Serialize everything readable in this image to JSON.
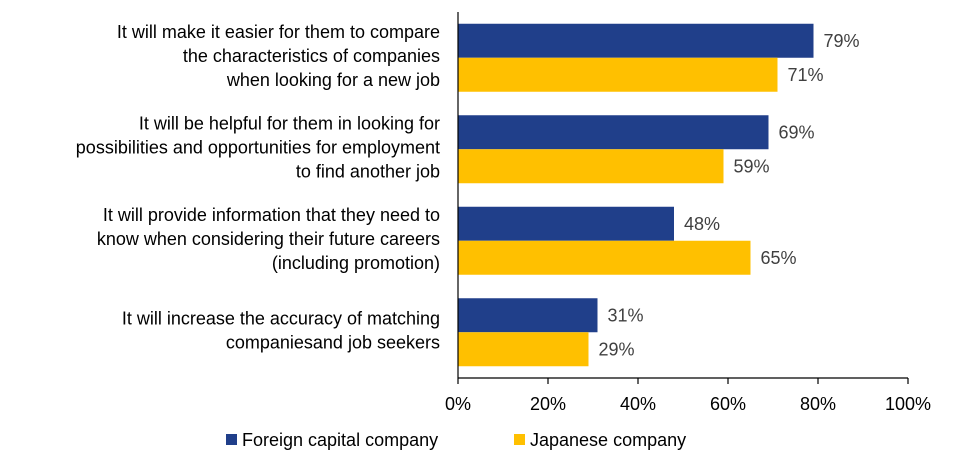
{
  "chart_data": {
    "type": "bar",
    "orientation": "horizontal",
    "categories": [
      [
        "It will make it easier for them to compare",
        "the characteristics of companies",
        "when looking for a new job"
      ],
      [
        "It will be helpful for them in looking for",
        "possibilities and opportunities for employment",
        "to find another job"
      ],
      [
        "It will provide information that they need to",
        "know when considering their future careers",
        "(including promotion)"
      ],
      [
        "It will increase the accuracy of matching",
        "companiesand job seekers"
      ]
    ],
    "series": [
      {
        "name": "Foreign capital company",
        "color": "#203f8a",
        "values": [
          79,
          69,
          48,
          31
        ],
        "labels": [
          "79%",
          "69%",
          "48%",
          "31%"
        ]
      },
      {
        "name": "Japanese company",
        "color": "#ffc000",
        "values": [
          71,
          59,
          65,
          29
        ],
        "labels": [
          "71%",
          "59%",
          "65%",
          "29%"
        ]
      }
    ],
    "xlim": [
      0,
      100
    ],
    "xticks": [
      "0%",
      "20%",
      "40%",
      "60%",
      "80%",
      "100%"
    ],
    "grid": false,
    "legend_position": "bottom"
  }
}
